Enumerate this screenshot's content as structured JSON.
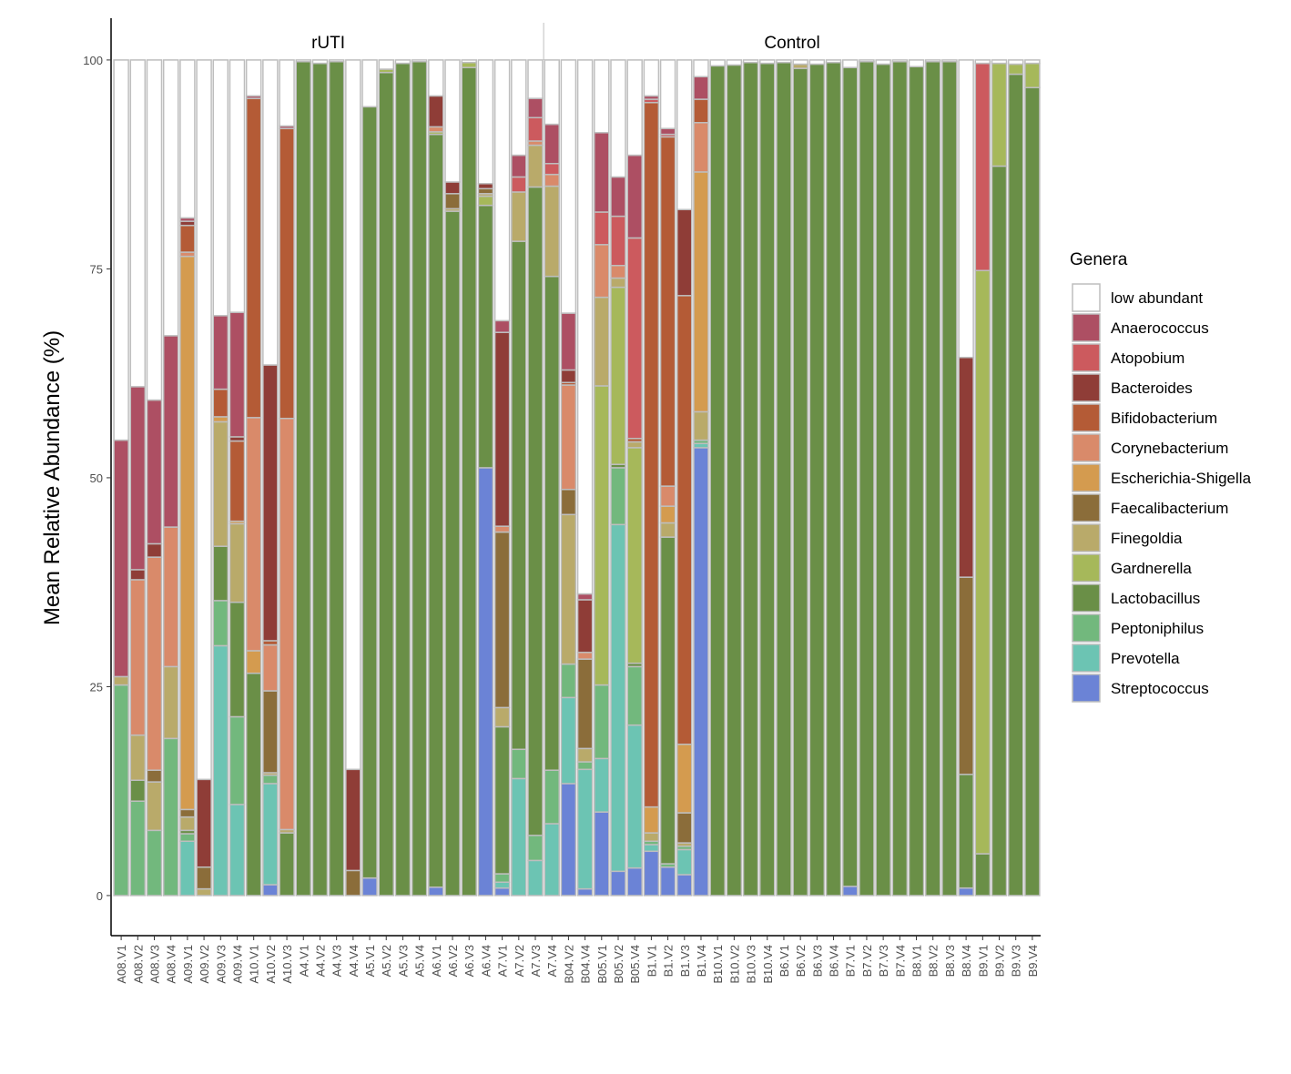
{
  "chart_data": {
    "type": "stacked_bar",
    "y_label": "Mean Relative Abundance (%)",
    "legend_title": "Genera",
    "legend_position": "right",
    "ylim": [
      -4.8,
      105
    ],
    "yticks": [
      0,
      25,
      50,
      75,
      100
    ],
    "facets": [
      {
        "label": "rUTI",
        "from": "A08.V1",
        "to": "A7.V3"
      },
      {
        "label": "Control",
        "from": "A7.V4",
        "to": "B9.V4"
      }
    ],
    "categories": [
      "A08.V1",
      "A08.V2",
      "A08.V3",
      "A08.V4",
      "A09.V1",
      "A09.V2",
      "A09.V3",
      "A09.V4",
      "A10.V1",
      "A10.V2",
      "A10.V3",
      "A4.V1",
      "A4.V2",
      "A4.V3",
      "A4.V4",
      "A5.V1",
      "A5.V2",
      "A5.V3",
      "A5.V4",
      "A6.V1",
      "A6.V2",
      "A6.V3",
      "A6.V4",
      "A7.V1",
      "A7.V2",
      "A7.V3",
      "A7.V4",
      "B04.V2",
      "B04.V4",
      "B05.V1",
      "B05.V2",
      "B05.V4",
      "B1.V1",
      "B1.V2",
      "B1.V3",
      "B1.V4",
      "B10.V1",
      "B10.V2",
      "B10.V3",
      "B10.V4",
      "B6.V1",
      "B6.V2",
      "B6.V3",
      "B6.V4",
      "B7.V1",
      "B7.V2",
      "B7.V3",
      "B7.V4",
      "B8.V1",
      "B8.V2",
      "B8.V3",
      "B8.V4",
      "B9.V1",
      "B9.V2",
      "B9.V3",
      "B9.V4"
    ],
    "series": [
      {
        "name": "low abundant",
        "color": "#ffffff",
        "values": [
          45.5,
          39.1,
          40.7,
          33.0,
          18.9,
          86.1,
          30.6,
          30.2,
          4.3,
          36.5,
          7.9,
          0.2,
          0.4,
          0.2,
          84.9,
          5.6,
          1.1,
          0.4,
          0.2,
          4.3,
          14.6,
          0.3,
          14.8,
          31.2,
          11.4,
          4.6,
          7.7,
          30.3,
          63.9,
          8.7,
          14.0,
          11.4,
          4.3,
          8.2,
          17.9,
          2.0,
          0.7,
          0.6,
          0.3,
          0.4,
          0.3,
          0.5,
          0.5,
          0.3,
          0.9,
          0.2,
          0.5,
          0.2,
          0.8,
          0.2,
          0.2,
          35.6,
          0.4,
          0.4,
          0.5,
          0.4
        ]
      },
      {
        "name": "Anaerococcus",
        "color": "#ad4f63",
        "values": [
          28.3,
          21.9,
          17.2,
          22.9,
          0.4,
          0,
          8.8,
          14.9,
          0.3,
          0,
          0.3,
          0,
          0,
          0,
          0,
          0,
          0,
          0,
          0,
          0,
          0,
          0,
          0,
          1.4,
          2.6,
          2.3,
          4.7,
          6.8,
          0.7,
          9.5,
          4.7,
          9.9,
          0.4,
          0.7,
          0,
          2.7,
          0,
          0,
          0,
          0,
          0,
          0,
          0,
          0,
          0,
          0,
          0,
          0,
          0,
          0,
          0,
          0,
          0,
          0,
          0,
          0
        ]
      },
      {
        "name": "Atopobium",
        "color": "#cc5a5e",
        "values": [
          0,
          0,
          0,
          0,
          0,
          0,
          0,
          0,
          0,
          0,
          0,
          0,
          0,
          0,
          0,
          0,
          0,
          0,
          0,
          0,
          0,
          0,
          0,
          0,
          1.8,
          2.8,
          1.3,
          0,
          0,
          3.9,
          5.9,
          24.0,
          0.4,
          0.3,
          0,
          0,
          0,
          0,
          0,
          0,
          0,
          0,
          0,
          0,
          0,
          0,
          0,
          0,
          0,
          0,
          0,
          0,
          24.8,
          0,
          0,
          0
        ]
      },
      {
        "name": "Bacteroides",
        "color": "#8f3d37",
        "values": [
          0,
          1.2,
          1.6,
          0,
          0.5,
          10.5,
          0,
          0.5,
          0,
          33.0,
          0,
          0,
          0,
          0,
          12.1,
          0,
          0,
          0,
          0,
          3.7,
          1.4,
          0,
          0.6,
          23.2,
          0,
          0,
          0,
          1.5,
          6.3,
          0,
          0,
          0,
          0,
          0,
          10.3,
          0,
          0,
          0,
          0,
          0,
          0,
          0,
          0,
          0,
          0,
          0,
          0,
          0,
          0,
          0,
          0,
          26.3,
          0,
          0,
          0,
          0
        ]
      },
      {
        "name": "Bifidobacterium",
        "color": "#b45b36",
        "values": [
          0,
          0,
          0,
          0,
          3.2,
          0,
          3.3,
          9.6,
          38.2,
          0.5,
          34.7,
          0,
          0,
          0,
          0,
          0,
          0,
          0,
          0,
          0,
          0,
          0,
          0,
          0,
          0,
          0,
          0,
          0.3,
          0,
          0,
          0,
          0.4,
          84.3,
          41.8,
          53.7,
          2.8,
          0,
          0,
          0,
          0,
          0,
          0,
          0,
          0,
          0,
          0,
          0,
          0,
          0,
          0,
          0,
          0,
          0,
          0,
          0,
          0
        ]
      },
      {
        "name": "Corynebacterium",
        "color": "#d98a6a",
        "values": [
          0,
          18.6,
          25.5,
          16.7,
          0.5,
          0,
          0,
          0,
          27.9,
          5.5,
          49.2,
          0,
          0,
          0,
          0,
          0,
          0,
          0,
          0,
          0.6,
          0,
          0,
          0,
          0.7,
          0,
          0.5,
          1.4,
          12.5,
          0.8,
          6.3,
          1.5,
          0,
          0,
          2.4,
          0,
          5.9,
          0,
          0,
          0,
          0,
          0,
          0,
          0,
          0,
          0,
          0,
          0,
          0,
          0,
          0,
          0,
          0,
          0,
          0,
          0,
          0
        ]
      },
      {
        "name": "Escherichia-Shigella",
        "color": "#d49b4f",
        "values": [
          0,
          0,
          0,
          0,
          66.2,
          0,
          0.6,
          0.3,
          2.7,
          0,
          0,
          0,
          0,
          0,
          0,
          0,
          0,
          0,
          0,
          0,
          0,
          0,
          0,
          0,
          0,
          0,
          0,
          0,
          0,
          0,
          0,
          0,
          3.1,
          2.0,
          8.2,
          28.7,
          0,
          0,
          0,
          0,
          0,
          0,
          0,
          0,
          0,
          0,
          0,
          0,
          0,
          0,
          0,
          0,
          0,
          0,
          0,
          0
        ]
      },
      {
        "name": "Faecalibacterium",
        "color": "#8b6d3a",
        "values": [
          0,
          0,
          1.4,
          0,
          0.9,
          2.6,
          0,
          0,
          0,
          9.8,
          0,
          0,
          0,
          0,
          3.0,
          0,
          0,
          0,
          0,
          0,
          1.8,
          0,
          0.6,
          21.0,
          0,
          0,
          0,
          3.0,
          10.7,
          0,
          0,
          0,
          0,
          0,
          3.6,
          0,
          0,
          0,
          0,
          0,
          0,
          0,
          0,
          0,
          0,
          0,
          0,
          0,
          0,
          0,
          0,
          23.6,
          0,
          0,
          0,
          0
        ]
      },
      {
        "name": "Finegoldia",
        "color": "#b9aa6a",
        "values": [
          1.0,
          5.4,
          5.8,
          8.6,
          1.6,
          0.8,
          14.9,
          9.4,
          0,
          0.3,
          0.4,
          0,
          0,
          0,
          0,
          0,
          0,
          0,
          0,
          0,
          0.3,
          0,
          0.3,
          2.3,
          5.9,
          5.0,
          10.8,
          17.9,
          1.6,
          10.6,
          1.1,
          0.7,
          1.0,
          1.7,
          0.4,
          3.4,
          0,
          0,
          0,
          0,
          0,
          0.5,
          0,
          0,
          0,
          0,
          0,
          0,
          0,
          0,
          0,
          0,
          0,
          0,
          0,
          0
        ]
      },
      {
        "name": "Gardnerella",
        "color": "#a6b85a",
        "values": [
          0,
          0,
          0,
          0,
          0,
          0,
          0,
          0,
          0,
          0,
          0,
          0,
          0,
          0,
          0,
          0,
          0.4,
          0,
          0,
          0.3,
          0,
          0.6,
          1.1,
          0,
          0,
          0,
          0,
          0,
          0,
          35.8,
          21.2,
          25.8,
          0,
          0,
          0,
          0,
          0,
          0,
          0,
          0,
          0,
          0,
          0,
          0,
          0,
          0,
          0,
          0,
          0,
          0,
          0,
          0,
          69.8,
          12.3,
          1.2,
          2.9
        ]
      },
      {
        "name": "Lactobacillus",
        "color": "#6a8f47",
        "values": [
          0,
          2.5,
          0,
          0,
          0.4,
          0,
          6.5,
          13.7,
          26.6,
          0,
          7.5,
          99.8,
          99.6,
          99.8,
          0,
          92.3,
          98.5,
          99.6,
          99.8,
          90.1,
          81.9,
          99.1,
          31.4,
          17.6,
          60.8,
          77.6,
          59.1,
          0,
          0,
          0,
          0.4,
          0.4,
          0,
          39.1,
          0,
          0,
          99.3,
          99.4,
          99.7,
          99.6,
          99.7,
          99.0,
          99.5,
          99.7,
          98.0,
          99.8,
          99.5,
          99.8,
          99.2,
          99.8,
          99.8,
          13.6,
          5.0,
          87.3,
          98.3,
          96.7
        ]
      },
      {
        "name": "Peptoniphilus",
        "color": "#72b87d",
        "values": [
          25.2,
          11.3,
          7.8,
          18.8,
          0.9,
          0,
          5.4,
          10.5,
          0,
          1.0,
          0,
          0,
          0,
          0,
          0,
          0,
          0,
          0,
          0,
          0,
          0,
          0,
          0,
          1.0,
          3.5,
          3.0,
          6.4,
          4.0,
          0.9,
          8.8,
          6.8,
          7.0,
          0.4,
          0.4,
          0.4,
          0.4,
          0,
          0,
          0,
          0,
          0,
          0,
          0,
          0,
          0,
          0,
          0,
          0,
          0,
          0,
          0,
          0,
          0,
          0,
          0,
          0
        ]
      },
      {
        "name": "Prevotella",
        "color": "#6cc4b3",
        "values": [
          0,
          0,
          0,
          0,
          6.5,
          0,
          29.9,
          10.9,
          0,
          12.1,
          0,
          0,
          0,
          0,
          0,
          0,
          0,
          0,
          0,
          0,
          0,
          0,
          0,
          0.7,
          14.0,
          4.2,
          8.6,
          10.3,
          14.3,
          6.4,
          41.5,
          17.1,
          0.8,
          0,
          3.0,
          0.5,
          0,
          0,
          0,
          0,
          0,
          0,
          0,
          0,
          0,
          0,
          0,
          0,
          0,
          0,
          0,
          0,
          0,
          0,
          0,
          0
        ]
      },
      {
        "name": "Streptococcus",
        "color": "#6b83d6",
        "values": [
          0,
          0,
          0,
          0,
          0,
          0,
          0,
          0,
          0,
          1.3,
          0,
          0,
          0,
          0,
          0,
          2.1,
          0,
          0,
          0,
          1.0,
          0,
          0,
          51.2,
          0.9,
          0,
          0,
          0,
          13.4,
          0.8,
          10.0,
          2.9,
          3.3,
          5.3,
          3.4,
          2.5,
          53.6,
          0,
          0,
          0,
          0,
          0,
          0,
          0,
          0,
          1.1,
          0,
          0,
          0,
          0,
          0,
          0,
          0.9,
          0,
          0,
          0,
          0
        ]
      }
    ]
  }
}
